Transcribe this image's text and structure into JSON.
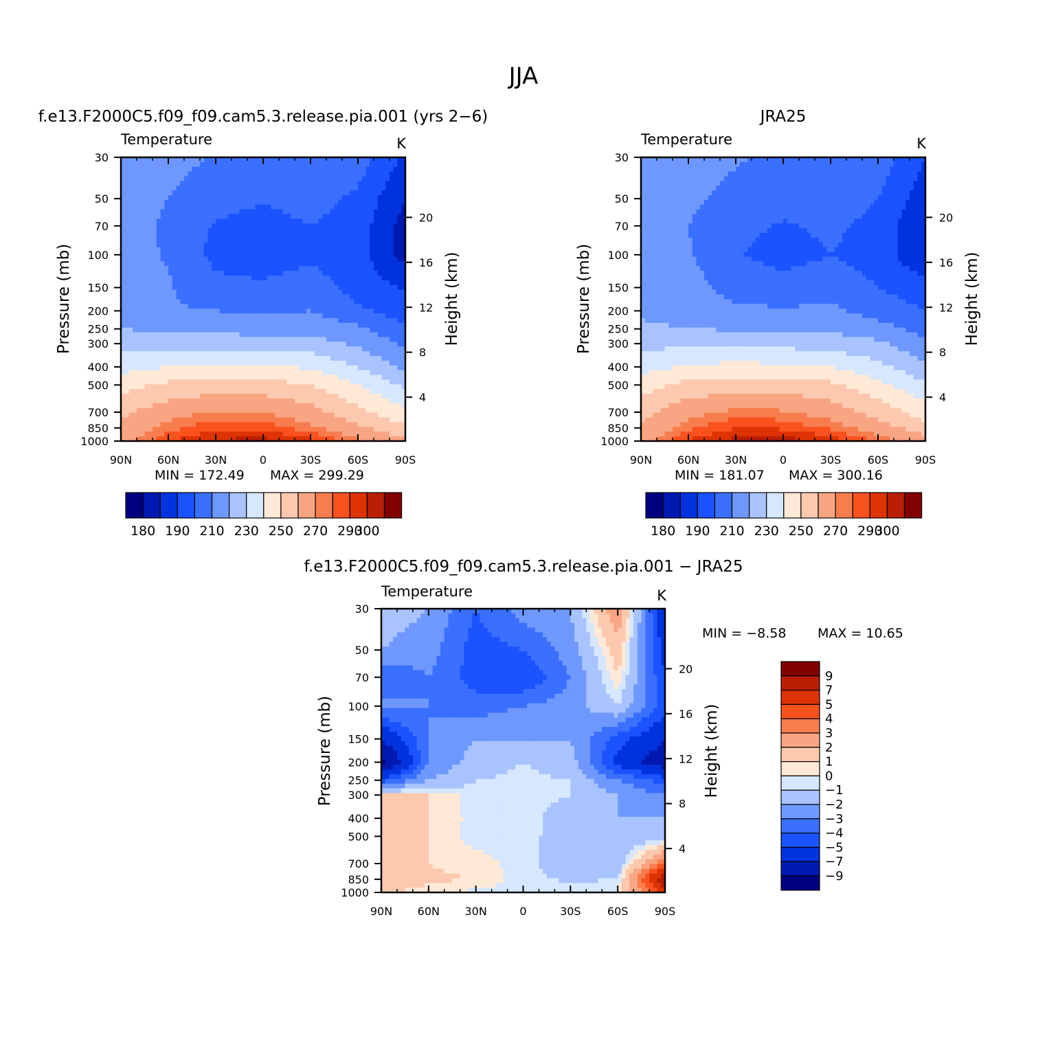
{
  "figure": {
    "title": "JJA"
  },
  "colors": {
    "abs_levels": [
      "#000080",
      "#0019b0",
      "#0033dd",
      "#1a53ff",
      "#3a6fff",
      "#6f98ff",
      "#a8c3ff",
      "#d6e7ff",
      "#fee8d6",
      "#fcc8ae",
      "#f8a583",
      "#f77d4f",
      "#f9521e",
      "#de3302",
      "#b81f05",
      "#820000"
    ],
    "diff_levels": [
      "#000080",
      "#0019b0",
      "#0033dd",
      "#1a53ff",
      "#3a6fff",
      "#6f98ff",
      "#a8c3ff",
      "#d6e7ff",
      "#fee8d6",
      "#fcc8ae",
      "#f8a583",
      "#f77d4f",
      "#f9521e",
      "#de3302",
      "#b81f05",
      "#820000"
    ]
  },
  "chart_data": [
    {
      "type": "heatmap",
      "panel_title": "f.e13.F2000C5.f09_f09.cam5.3.release.pia.001 (yrs 2−6)",
      "left_label": "Temperature",
      "units": "K",
      "ylabel": "Pressure (mb)",
      "ylabel_right": "Height (km)",
      "x_ticks": [
        "90N",
        "60N",
        "30N",
        "0",
        "30S",
        "60S",
        "90S"
      ],
      "y_ticks": [
        "30",
        "50",
        "70",
        "100",
        "150",
        "200",
        "250",
        "300",
        "400",
        "500",
        "700",
        "850",
        "1000"
      ],
      "y_right_ticks": [
        "20",
        "16",
        "12",
        "8",
        "4"
      ],
      "min_label": "MIN =  172.49",
      "max_label": "MAX =  299.29",
      "colorbar_labels": [
        "180",
        "190",
        "210",
        "230",
        "250",
        "270",
        "290",
        "300"
      ],
      "profile": {
        "lat": [
          90,
          60,
          30,
          0,
          -30,
          -60,
          -90
        ],
        "p": [
          30,
          50,
          70,
          100,
          150,
          200,
          250,
          300,
          400,
          500,
          700,
          850,
          1000
        ],
        "values": [
          [
            228,
            224,
            219,
            216,
            218,
            215,
            198
          ],
          [
            226,
            220,
            214,
            211,
            214,
            208,
            190
          ],
          [
            225,
            218,
            209,
            206,
            210,
            205,
            186
          ],
          [
            225,
            219,
            207,
            204,
            208,
            204,
            186
          ],
          [
            226,
            221,
            213,
            212,
            215,
            206,
            199
          ],
          [
            224,
            221,
            220,
            219,
            220,
            212,
            205
          ],
          [
            230,
            228,
            227,
            226,
            226,
            222,
            212
          ],
          [
            236,
            236,
            236,
            235,
            234,
            228,
            218
          ],
          [
            246,
            250,
            252,
            251,
            249,
            240,
            228
          ],
          [
            256,
            262,
            264,
            264,
            260,
            250,
            238
          ],
          [
            268,
            276,
            281,
            280,
            274,
            263,
            252
          ],
          [
            272,
            283,
            289,
            288,
            282,
            272,
            262
          ],
          [
            276,
            290,
            296,
            297,
            292,
            282,
            272
          ]
        ]
      }
    },
    {
      "type": "heatmap",
      "panel_title": "JRA25",
      "left_label": "Temperature",
      "units": "K",
      "ylabel": "Pressure (mb)",
      "ylabel_right": "Height (km)",
      "x_ticks": [
        "90N",
        "60N",
        "30N",
        "0",
        "30S",
        "60S",
        "90S"
      ],
      "y_ticks": [
        "30",
        "50",
        "70",
        "100",
        "150",
        "200",
        "250",
        "300",
        "400",
        "500",
        "700",
        "850",
        "1000"
      ],
      "y_right_ticks": [
        "20",
        "16",
        "12",
        "8",
        "4"
      ],
      "min_label": "MIN =  181.07",
      "max_label": "MAX =  300.16",
      "colorbar_labels": [
        "180",
        "190",
        "210",
        "230",
        "250",
        "270",
        "290",
        "300"
      ],
      "profile": {
        "lat": [
          90,
          60,
          30,
          0,
          -30,
          -60,
          -90
        ],
        "p": [
          30,
          50,
          70,
          100,
          150,
          200,
          250,
          300,
          400,
          500,
          700,
          850,
          1000
        ],
        "values": [
          [
            228,
            225,
            221,
            218,
            220,
            216,
            200
          ],
          [
            227,
            222,
            217,
            214,
            216,
            210,
            194
          ],
          [
            226,
            220,
            213,
            209,
            212,
            207,
            190
          ],
          [
            226,
            221,
            211,
            206,
            210,
            206,
            190
          ],
          [
            228,
            224,
            216,
            214,
            216,
            210,
            204
          ],
          [
            228,
            226,
            222,
            221,
            222,
            216,
            210
          ],
          [
            232,
            230,
            229,
            228,
            228,
            224,
            216
          ],
          [
            237,
            238,
            238,
            237,
            236,
            232,
            222
          ],
          [
            246,
            251,
            253,
            252,
            250,
            243,
            232
          ],
          [
            255,
            263,
            265,
            265,
            262,
            253,
            242
          ],
          [
            267,
            277,
            282,
            281,
            276,
            266,
            255
          ],
          [
            271,
            284,
            290,
            289,
            284,
            275,
            264
          ],
          [
            275,
            291,
            297,
            298,
            293,
            284,
            275
          ]
        ]
      }
    },
    {
      "type": "heatmap",
      "panel_title": "f.e13.F2000C5.f09_f09.cam5.3.release.pia.001 − JRA25",
      "left_label": "Temperature",
      "units": "K",
      "ylabel": "Pressure (mb)",
      "ylabel_right": "Height (km)",
      "x_ticks": [
        "90N",
        "60N",
        "30N",
        "0",
        "30S",
        "60S",
        "90S"
      ],
      "y_ticks": [
        "30",
        "50",
        "70",
        "100",
        "150",
        "200",
        "250",
        "300",
        "400",
        "500",
        "700",
        "850",
        "1000"
      ],
      "y_right_ticks": [
        "20",
        "16",
        "12",
        "8",
        "4"
      ],
      "min_label": "MIN =   −8.58",
      "max_label": "MAX =   10.65",
      "colorbar_labels": [
        "9",
        "7",
        "5",
        "4",
        "3",
        "2",
        "1",
        "0",
        "−1",
        "−2",
        "−3",
        "−4",
        "−5",
        "−7",
        "−9"
      ],
      "profile": {
        "lat": [
          90,
          60,
          30,
          0,
          -30,
          -60,
          -90
        ],
        "p": [
          30,
          50,
          70,
          100,
          150,
          200,
          250,
          300,
          400,
          500,
          700,
          850,
          1000
        ],
        "values": [
          [
            -1.0,
            -1.5,
            -3.5,
            -2.0,
            -1.5,
            2.5,
            -6.0
          ],
          [
            -1.5,
            -2.0,
            -4.0,
            -3.5,
            -2.0,
            1.0,
            -5.0
          ],
          [
            -3.5,
            -2.5,
            -4.0,
            -4.5,
            -2.5,
            0.5,
            -4.5
          ],
          [
            -2.0,
            -2.5,
            -3.0,
            -2.5,
            -2.0,
            -0.5,
            -4.0
          ],
          [
            -6.0,
            -2.5,
            -1.5,
            -1.5,
            -1.5,
            -4.0,
            -6.0
          ],
          [
            -8.5,
            -2.5,
            -1.0,
            -0.5,
            -1.0,
            -5.0,
            -7.0
          ],
          [
            -4.0,
            -1.5,
            -0.5,
            -0.3,
            -0.5,
            -2.5,
            -4.0
          ],
          [
            0.5,
            0.5,
            -0.3,
            -0.2,
            -0.5,
            -1.5,
            -2.5
          ],
          [
            0.6,
            0.5,
            -0.2,
            -0.2,
            -1.0,
            -1.5,
            -1.5
          ],
          [
            0.6,
            0.5,
            -0.3,
            -0.2,
            -1.0,
            -1.5,
            -1.0
          ],
          [
            0.6,
            0.5,
            0.3,
            -0.3,
            -1.0,
            -1.0,
            3.5
          ],
          [
            1.2,
            0.6,
            0.5,
            -0.3,
            -0.6,
            -0.5,
            7.5
          ],
          [
            0.5,
            0.3,
            -0.2,
            -0.2,
            -0.3,
            0.0,
            5.0
          ]
        ]
      }
    }
  ]
}
